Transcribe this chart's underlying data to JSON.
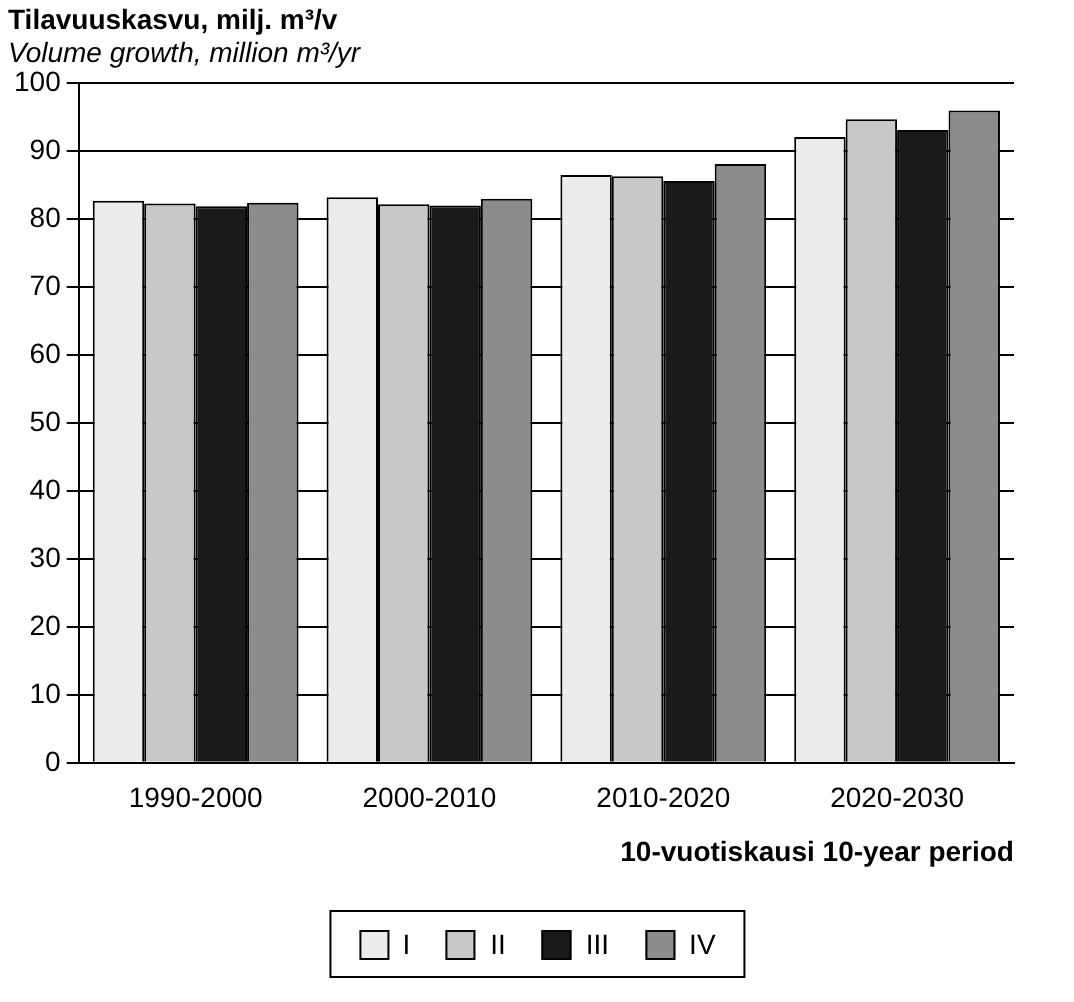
{
  "chart_data": {
    "type": "bar",
    "title": "Tilavuuskasvu, milj. m³/v",
    "subtitle": "Volume growth, million m³/yr",
    "xlabel": "10-vuotiskausi 10-year period",
    "categories": [
      "1990-2000",
      "2000-2010",
      "2010-2020",
      "2020-2030"
    ],
    "series": [
      {
        "name": "I",
        "color": "#ececec",
        "values": [
          82.7,
          83.2,
          86.5,
          92.1
        ]
      },
      {
        "name": "II",
        "color": "#c8c8c8",
        "values": [
          82.3,
          82.2,
          86.3,
          94.7
        ]
      },
      {
        "name": "III",
        "color": "#1a1a1a",
        "values": [
          81.9,
          82.0,
          85.6,
          93.1
        ]
      },
      {
        "name": "IV",
        "color": "#8c8c8c",
        "values": [
          82.4,
          83.0,
          88.1,
          96.0
        ]
      }
    ],
    "ylim": [
      0,
      100
    ],
    "yticks": [
      0,
      10,
      20,
      30,
      40,
      50,
      60,
      70,
      80,
      90,
      100
    ],
    "grid": "y",
    "legend": "bottom"
  }
}
